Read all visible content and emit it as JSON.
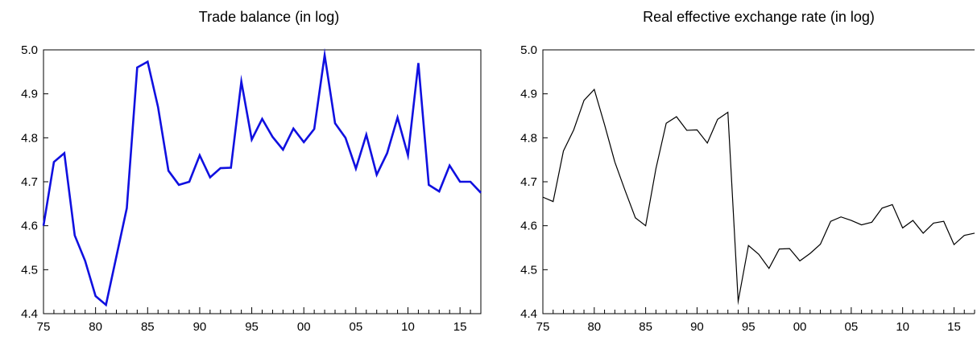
{
  "chart_data": [
    {
      "type": "line",
      "title": "Trade balance (in log)",
      "xlabel": "",
      "ylabel": "",
      "x_start": 1975,
      "x_end": 2017,
      "xlim": [
        1975,
        2017
      ],
      "ylim": [
        4.4,
        5.0
      ],
      "xtick_values": [
        1975,
        1980,
        1985,
        1990,
        1995,
        2000,
        2005,
        2010,
        2015
      ],
      "xtick_labels": [
        "75",
        "80",
        "85",
        "90",
        "95",
        "00",
        "05",
        "10",
        "15"
      ],
      "ytick_values": [
        4.4,
        4.5,
        4.6,
        4.7,
        4.8,
        4.9,
        5.0
      ],
      "ytick_labels": [
        "4.4",
        "4.5",
        "4.6",
        "4.7",
        "4.8",
        "4.9",
        "5.0"
      ],
      "color": "#1010e0",
      "line_width": 2.6,
      "frame": "full",
      "grid": false,
      "series": [
        {
          "x": [
            1975,
            1976,
            1977,
            1978,
            1979,
            1980,
            1981,
            1982,
            1983,
            1984,
            1985,
            1986,
            1987,
            1988,
            1989,
            1990,
            1991,
            1992,
            1993,
            1994,
            1995,
            1996,
            1997,
            1998,
            1999,
            2000,
            2001,
            2002,
            2003,
            2004,
            2005,
            2006,
            2007,
            2008,
            2009,
            2010,
            2011,
            2012,
            2013,
            2014,
            2015,
            2016,
            2017
          ],
          "values": [
            4.6,
            4.745,
            4.765,
            4.578,
            4.52,
            4.44,
            4.42,
            4.53,
            4.64,
            4.96,
            4.973,
            4.87,
            4.725,
            4.693,
            4.7,
            4.76,
            4.71,
            4.731,
            4.732,
            4.928,
            4.796,
            4.843,
            4.802,
            4.773,
            4.821,
            4.79,
            4.82,
            4.988,
            4.833,
            4.8,
            4.73,
            4.807,
            4.716,
            4.765,
            4.846,
            4.76,
            4.97,
            4.693,
            4.678,
            4.737,
            4.7,
            4.7,
            4.675
          ]
        }
      ]
    },
    {
      "type": "line",
      "title": "Real effective exchange rate (in log)",
      "xlabel": "",
      "ylabel": "",
      "xlim": [
        1975,
        2017
      ],
      "ylim": [
        4.4,
        5.0
      ],
      "xtick_values": [
        1975,
        1980,
        1985,
        1990,
        1995,
        2000,
        2005,
        2010,
        2015
      ],
      "xtick_labels": [
        "75",
        "80",
        "85",
        "90",
        "95",
        "00",
        "05",
        "10",
        "15"
      ],
      "ytick_values": [
        4.4,
        4.5,
        4.6,
        4.7,
        4.8,
        4.9,
        5.0
      ],
      "ytick_labels": [
        "4.4",
        "4.5",
        "4.6",
        "4.7",
        "4.8",
        "4.9",
        "5.0"
      ],
      "color": "#000000",
      "line_width": 1.2,
      "frame": "top-left-bottom",
      "grid": false,
      "series": [
        {
          "x": [
            1975,
            1976,
            1977,
            1978,
            1979,
            1980,
            1981,
            1982,
            1983,
            1984,
            1985,
            1986,
            1987,
            1988,
            1989,
            1990,
            1991,
            1992,
            1993,
            1994,
            1995,
            1996,
            1997,
            1998,
            1999,
            2000,
            2001,
            2002,
            2003,
            2004,
            2005,
            2006,
            2007,
            2008,
            2009,
            2010,
            2011,
            2012,
            2013,
            2014,
            2015,
            2016,
            2017
          ],
          "values": [
            4.665,
            4.655,
            4.77,
            4.818,
            4.885,
            4.91,
            4.83,
            4.745,
            4.68,
            4.618,
            4.6,
            4.73,
            4.833,
            4.848,
            4.817,
            4.818,
            4.788,
            4.842,
            4.858,
            4.428,
            4.555,
            4.535,
            4.503,
            4.547,
            4.548,
            4.52,
            4.537,
            4.558,
            4.61,
            4.62,
            4.612,
            4.602,
            4.608,
            4.64,
            4.648,
            4.595,
            4.612,
            4.583,
            4.606,
            4.61,
            4.557,
            4.578,
            4.583
          ]
        }
      ]
    }
  ]
}
